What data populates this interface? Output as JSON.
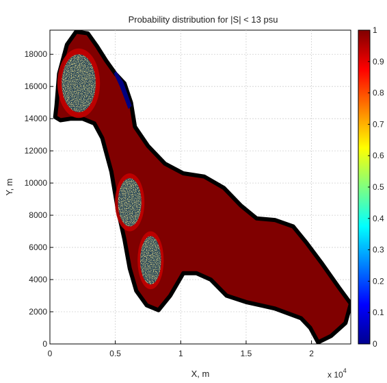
{
  "chart_data": {
    "type": "heatmap",
    "title": "Probability distribution for |S| < 13 psu",
    "xlabel": "X, m",
    "ylabel": "Y, m",
    "x_tick_labels": [
      "0",
      "0.5",
      "1",
      "1.5",
      "2"
    ],
    "x_ticks": [
      0,
      5000,
      10000,
      15000,
      20000
    ],
    "x_multiplier_label": "x 10",
    "x_multiplier_exponent": "4",
    "xlim": [
      0,
      23000
    ],
    "y_tick_labels": [
      "0",
      "2000",
      "4000",
      "6000",
      "8000",
      "10000",
      "12000",
      "14000",
      "16000",
      "18000"
    ],
    "y_ticks": [
      0,
      2000,
      4000,
      6000,
      8000,
      10000,
      12000,
      14000,
      16000,
      18000
    ],
    "ylim": [
      0,
      19500
    ],
    "grid": true,
    "colorbar": {
      "colormap": "jet",
      "range": [
        0,
        1
      ],
      "tick_labels": [
        "0",
        "0.1",
        "0.2",
        "0.3",
        "0.4",
        "0.5",
        "0.6",
        "0.7",
        "0.8",
        "0.9",
        "1"
      ],
      "ticks": [
        0,
        0.1,
        0.2,
        0.3,
        0.4,
        0.5,
        0.6,
        0.7,
        0.8,
        0.9,
        1
      ]
    },
    "domain_outline": [
      [
        500,
        14800
      ],
      [
        700,
        16800
      ],
      [
        1300,
        18600
      ],
      [
        2000,
        19400
      ],
      [
        2900,
        19300
      ],
      [
        3600,
        18500
      ],
      [
        4300,
        17600
      ],
      [
        5000,
        16800
      ],
      [
        5700,
        16200
      ],
      [
        6200,
        15000
      ],
      [
        6500,
        13500
      ],
      [
        7500,
        12300
      ],
      [
        8800,
        11200
      ],
      [
        10200,
        10600
      ],
      [
        11800,
        10400
      ],
      [
        13300,
        9700
      ],
      [
        14600,
        8600
      ],
      [
        15800,
        7800
      ],
      [
        17200,
        7700
      ],
      [
        18600,
        7300
      ],
      [
        19600,
        6300
      ],
      [
        20800,
        5000
      ],
      [
        22100,
        3500
      ],
      [
        23000,
        2500
      ],
      [
        22600,
        1300
      ],
      [
        21500,
        500
      ],
      [
        20500,
        100
      ],
      [
        19900,
        1000
      ],
      [
        19200,
        1600
      ],
      [
        17200,
        2200
      ],
      [
        15000,
        2600
      ],
      [
        13500,
        3000
      ],
      [
        12300,
        4000
      ],
      [
        11200,
        4400
      ],
      [
        10200,
        4400
      ],
      [
        9200,
        3000
      ],
      [
        8300,
        2100
      ],
      [
        7400,
        2400
      ],
      [
        6600,
        3300
      ],
      [
        6100,
        4700
      ],
      [
        5700,
        6500
      ],
      [
        5200,
        8300
      ],
      [
        4700,
        10700
      ],
      [
        4000,
        12800
      ],
      [
        3400,
        13700
      ],
      [
        2500,
        14000
      ],
      [
        1600,
        14000
      ],
      [
        800,
        13900
      ],
      [
        400,
        14100
      ]
    ],
    "domain_value": 1,
    "low_probability_patches": [
      {
        "center": [
          2200,
          16200
        ],
        "rx": 1300,
        "ry": 1800,
        "value_range": [
          0.2,
          0.9
        ]
      },
      {
        "center": [
          6100,
          8800
        ],
        "rx": 900,
        "ry": 1500,
        "value_range": [
          0.2,
          0.9
        ]
      },
      {
        "center": [
          7700,
          5200
        ],
        "rx": 800,
        "ry": 1500,
        "value_range": [
          0.2,
          0.9
        ]
      }
    ],
    "min_value_feature": {
      "value": 0,
      "points": [
        [
          5050,
          16950
        ],
        [
          5600,
          16300
        ],
        [
          6250,
          14800
        ],
        [
          6000,
          14600
        ],
        [
          5350,
          16000
        ],
        [
          4900,
          16800
        ]
      ]
    }
  }
}
